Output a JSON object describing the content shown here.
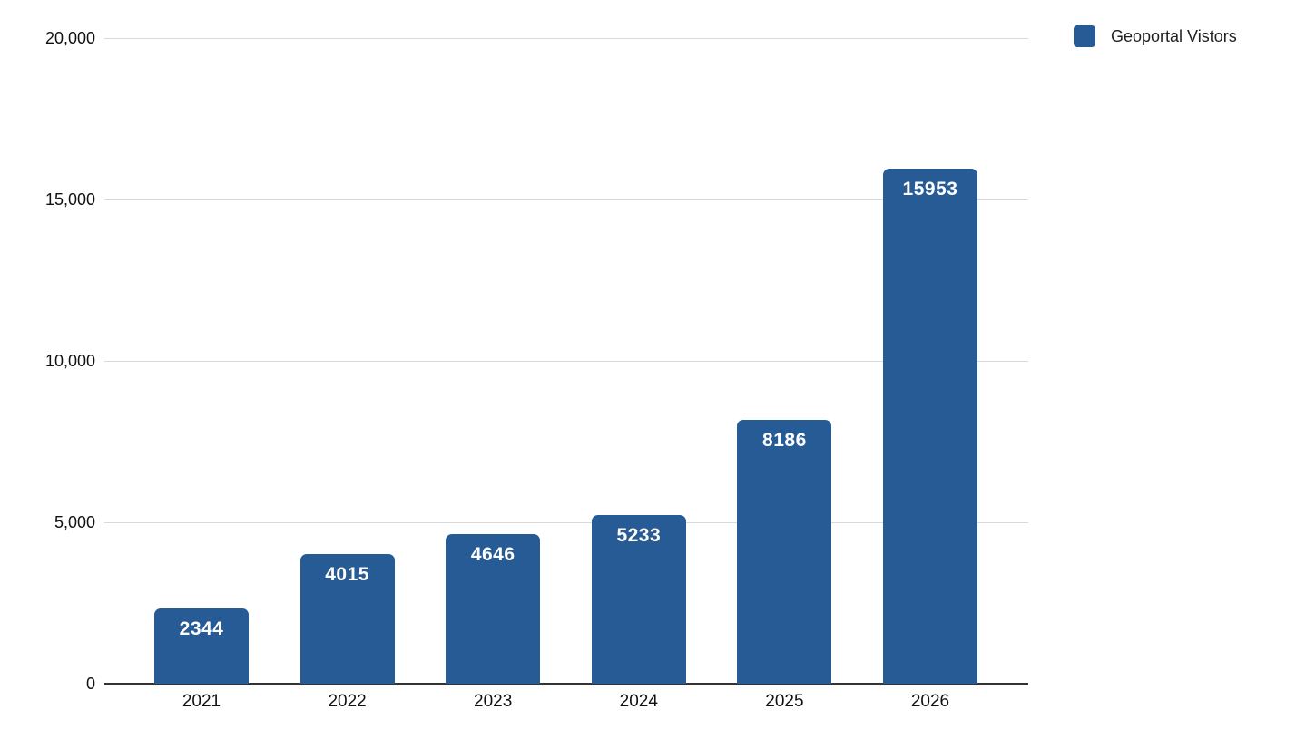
{
  "page": {
    "background": "#ffffff"
  },
  "legend": {
    "label": "Geoportal Vistors",
    "swatch_color": "#275b95",
    "position": "top-right"
  },
  "chart_data": {
    "type": "bar",
    "title": "",
    "xlabel": "",
    "ylabel": "",
    "categories": [
      "2021",
      "2022",
      "2023",
      "2024",
      "2025",
      "2026"
    ],
    "series": [
      {
        "name": "Geoportal Vistors",
        "values": [
          2344,
          4015,
          4646,
          5233,
          8186,
          15953
        ],
        "color": "#275b95",
        "data_label_color": "#ffffff"
      }
    ],
    "ylim": [
      0,
      20000
    ],
    "ytick_interval": 5000,
    "yticks": [
      0,
      5000,
      10000,
      15000,
      20000
    ],
    "ytick_labels": [
      "0",
      "5,000",
      "10,000",
      "15,000",
      "20,000"
    ],
    "grid": true,
    "gridline_color": "#d9d9d9",
    "axis_color": "#333333",
    "legend_position": "top-right",
    "data_labels_visible": true
  }
}
